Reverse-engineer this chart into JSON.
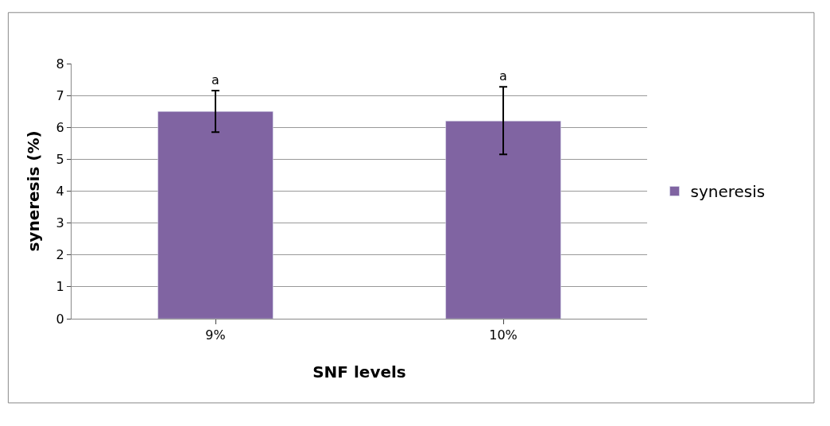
{
  "chart_data": {
    "type": "bar",
    "xlabel": "SNF levels",
    "ylabel": "syneresis (%)",
    "categories": [
      "9%",
      "10%"
    ],
    "series": [
      {
        "name": "syneresis",
        "color": "#8064a2",
        "values": [
          6.5,
          6.2
        ],
        "errors": [
          [
            5.85,
            7.15
          ],
          [
            5.15,
            7.27
          ]
        ]
      }
    ],
    "annotations": [
      "a",
      "a"
    ],
    "ylim": [
      0,
      8
    ],
    "yticks": [
      0,
      1,
      2,
      3,
      4,
      5,
      6,
      7,
      8
    ],
    "grid": "y",
    "legend": "right"
  }
}
